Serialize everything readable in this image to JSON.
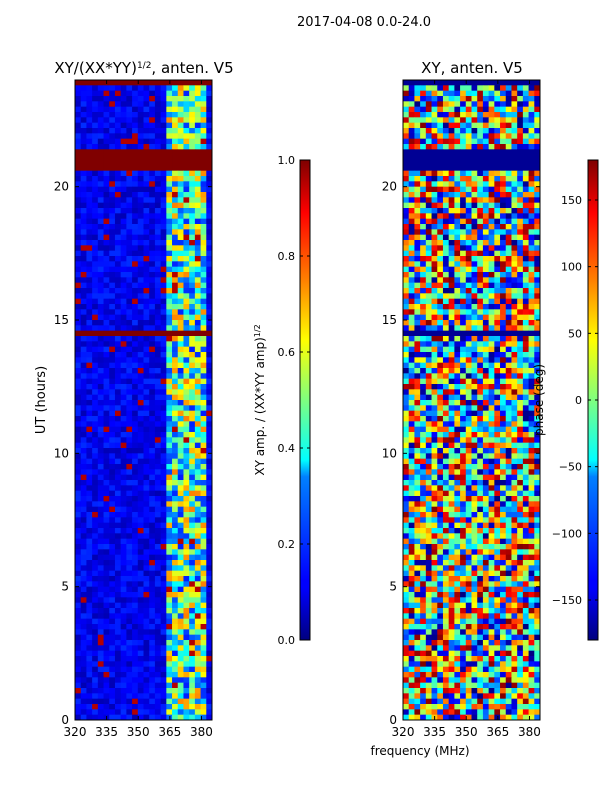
{
  "suptitle": "2017-04-08 0.0-24.0",
  "xlabel": "frequency (MHz)",
  "chart_data": [
    {
      "type": "heatmap",
      "title_main": "XY/(XX*YY)",
      "title_sup": "1/2",
      "title_tail": ", anten. V5",
      "ylabel": "UT (hours)",
      "xlim": [
        320,
        385
      ],
      "ylim": [
        0,
        24
      ],
      "x_ticks": [
        320,
        335,
        350,
        365,
        380
      ],
      "y_ticks": [
        0,
        5,
        10,
        15,
        20
      ],
      "colorbar": {
        "label_main": "XY amp. / (XX*YY amp)",
        "label_sup": "1/2",
        "range": [
          0.0,
          1.0
        ],
        "ticks": [
          0.0,
          0.2,
          0.4,
          0.6,
          0.8,
          1.0
        ],
        "tick_labels": [
          "0.0",
          "0.2",
          "0.4",
          "0.6",
          "0.8",
          "1.0"
        ],
        "colormap": "jet"
      }
    },
    {
      "type": "heatmap",
      "title_main": "XY, anten. V5",
      "title_sup": "",
      "title_tail": "",
      "ylabel": "",
      "xlim": [
        320,
        385
      ],
      "ylim": [
        0,
        24
      ],
      "x_ticks": [
        320,
        335,
        350,
        365,
        380
      ],
      "y_ticks": [
        0,
        5,
        10,
        15,
        20
      ],
      "colorbar": {
        "label_main": "phase (deg)",
        "label_sup": "",
        "range": [
          -180,
          180
        ],
        "ticks": [
          -150,
          -100,
          -50,
          0,
          50,
          100,
          150
        ],
        "tick_labels": [
          "−150",
          "−100",
          "−50",
          "0",
          "50",
          "100",
          "150"
        ],
        "colormap": "jet"
      }
    }
  ]
}
